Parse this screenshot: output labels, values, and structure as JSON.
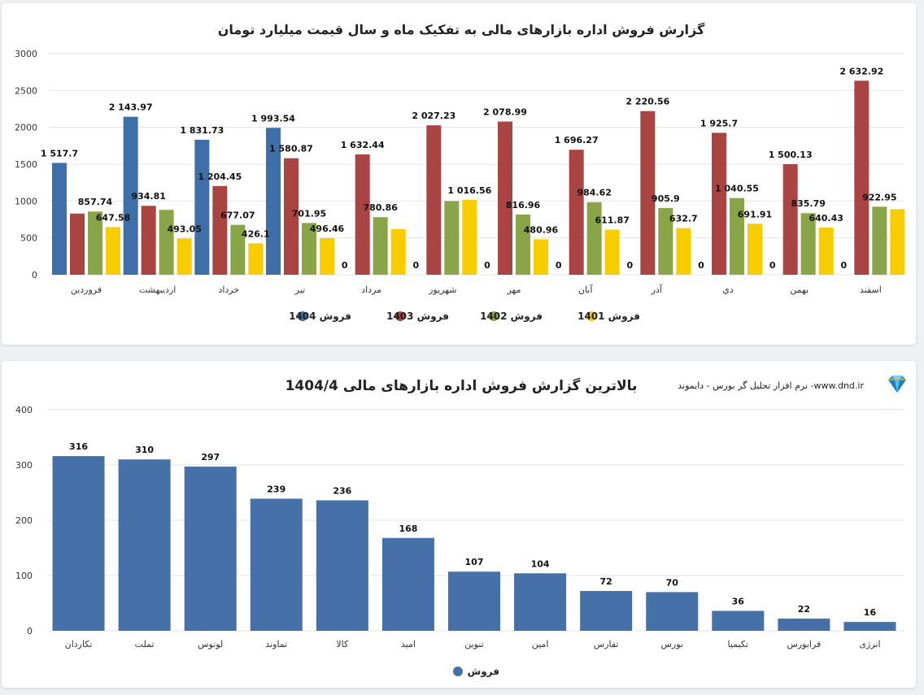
{
  "colors": {
    "s1404": "#3f6fa8",
    "s1403": "#a94442",
    "s1402": "#8aa548",
    "s1401": "#f8cd00",
    "grid": "#e6e6e6",
    "axis_text": "#333333",
    "label_text": "#111111",
    "bar2": "#4571a8"
  },
  "chart_data": [
    {
      "type": "bar",
      "title": "گزارش فروش اداره بازارهای مالی به تفکیک ماه و سال قیمت میلیارد تومان",
      "categories": [
        "فروردین",
        "اردیبهشت",
        "خرداد",
        "تیر",
        "مرداد",
        "شهریور",
        "مهر",
        "آبان",
        "آذر",
        "دي",
        "بهمن",
        "اسفند"
      ],
      "series": [
        {
          "name": "فروش 1404",
          "values": [
            1517.7,
            2143.97,
            1831.73,
            1993.54,
            0,
            0,
            0,
            0,
            0,
            0,
            0,
            0
          ],
          "labels": [
            "1 517.7",
            "2 143.97",
            "1 831.73",
            "1 993.54",
            "0",
            "0",
            "0",
            "0",
            "0",
            "0",
            "0",
            "0"
          ]
        },
        {
          "name": "فروش 1403",
          "values": [
            830,
            934.81,
            1204.45,
            1580.87,
            1632.44,
            2027.23,
            2078.99,
            1696.27,
            2220.56,
            1925.7,
            1500.13,
            2632.92
          ],
          "labels": [
            "",
            "934.81",
            "1 204.45",
            "1 580.87",
            "1 632.44",
            "2 027.23",
            "2 078.99",
            "1 696.27",
            "2 220.56",
            "1 925.7",
            "1 500.13",
            "2 632.92"
          ]
        },
        {
          "name": "فروش 1402",
          "values": [
            857.74,
            880,
            677.07,
            701.95,
            780.86,
            1000,
            816.96,
            984.62,
            905.9,
            1040.55,
            835.79,
            922.95
          ],
          "labels": [
            "857.74",
            "",
            "677.07",
            "701.95",
            "780.86",
            "",
            "816.96",
            "984.62",
            "905.9",
            "1 040.55",
            "835.79",
            "922.95"
          ]
        },
        {
          "name": "فروش 1401",
          "values": [
            647.58,
            493.05,
            426.1,
            496.46,
            620,
            1016.56,
            480.96,
            611.87,
            632.7,
            691.91,
            640.43,
            890
          ],
          "labels": [
            "647.58",
            "493.05",
            "426.1",
            "496.46",
            "",
            "1 016.56",
            "480.96",
            "611.87",
            "632.7",
            "691.91",
            "640.43",
            ""
          ]
        }
      ],
      "ylim": [
        0,
        3000
      ],
      "yticks": [
        0,
        500,
        1000,
        1500,
        2000,
        2500,
        3000
      ],
      "legend": "bottom"
    },
    {
      "type": "bar",
      "title": "بالاترین گزارش فروش اداره بازارهای مالی 1404/4",
      "categories": [
        "تکاردان",
        "تملت",
        "لوتوس",
        "تماوند",
        "کالا",
        "امید",
        "تنوین",
        "امین",
        "تفارس",
        "بورس",
        "تکیمیا",
        "فرابورس",
        "انرژی"
      ],
      "series": [
        {
          "name": "فروش",
          "values": [
            316,
            310,
            297,
            239,
            236,
            168,
            107,
            104,
            72,
            70,
            36,
            22,
            16
          ]
        }
      ],
      "ylim": [
        0,
        400
      ],
      "yticks": [
        0,
        100,
        200,
        300,
        400
      ],
      "legend": "bottom"
    }
  ],
  "brand": {
    "text": "نرم افزار تحلیل گر بورس - دایموند -www.dnd.ir",
    "icon": "diamond-icon"
  }
}
